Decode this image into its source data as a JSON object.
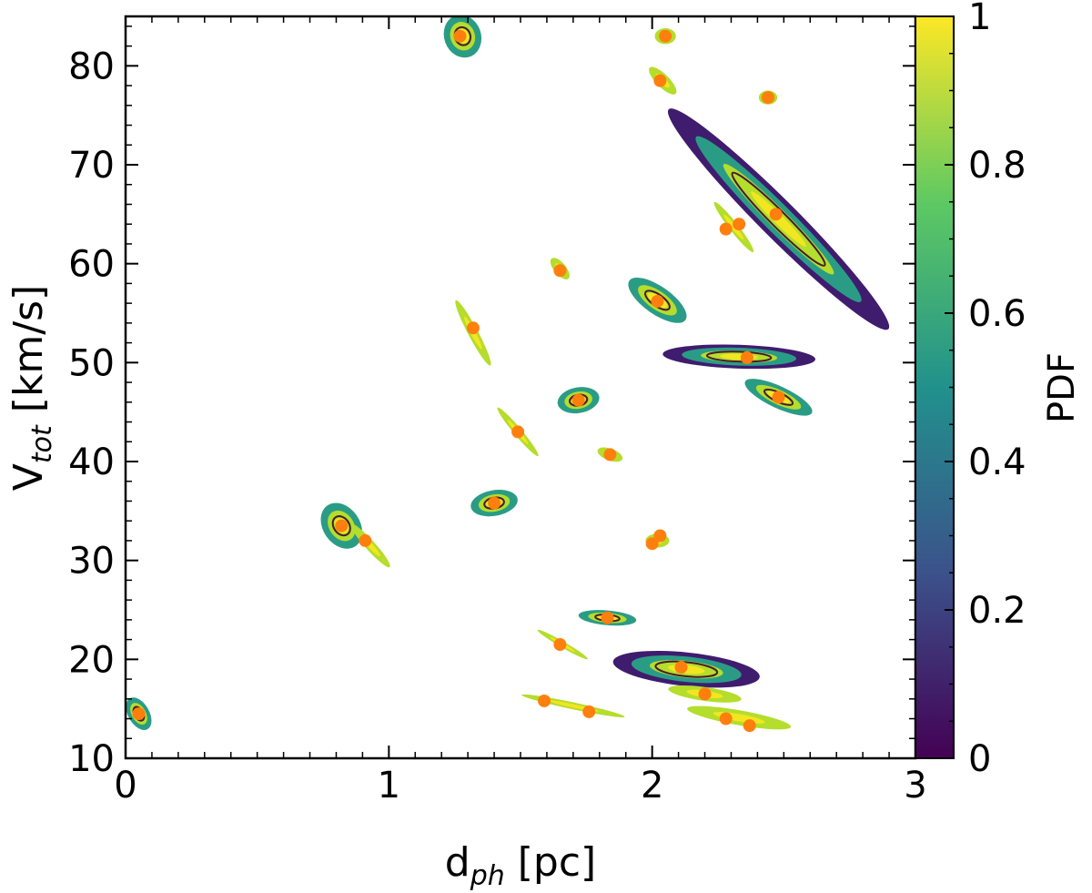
{
  "chart_data": {
    "type": "scatter",
    "xlim": [
      0,
      3
    ],
    "ylim": [
      10,
      85
    ],
    "x_ticks": [
      0,
      1,
      2,
      3
    ],
    "y_ticks": [
      10,
      20,
      30,
      40,
      50,
      60,
      70,
      80
    ],
    "xlabel": {
      "main": "d",
      "sub": "ph",
      "unit": " [pc]"
    },
    "ylabel": {
      "main": "V",
      "sub": "tot",
      "unit": " [km/s]"
    },
    "colorbar": {
      "label": "PDF",
      "range": [
        0,
        1
      ],
      "ticks": [
        "0",
        "0.2",
        "0.4",
        "0.6",
        "0.8",
        "1"
      ],
      "colormap": "viridis",
      "stops": [
        "#440154",
        "#3b528b",
        "#21918c",
        "#5ec962",
        "#fde725"
      ]
    },
    "marker_color": "#ff7f0e",
    "contour_color": "#4a1a2e",
    "points": [
      {
        "x": 0.05,
        "y": 14.5
      },
      {
        "x": 0.82,
        "y": 33.5
      },
      {
        "x": 0.91,
        "y": 32.0
      },
      {
        "x": 1.27,
        "y": 83.0
      },
      {
        "x": 1.32,
        "y": 53.5
      },
      {
        "x": 1.4,
        "y": 35.8
      },
      {
        "x": 1.49,
        "y": 43.0
      },
      {
        "x": 1.59,
        "y": 15.8
      },
      {
        "x": 1.65,
        "y": 21.5
      },
      {
        "x": 1.65,
        "y": 59.3
      },
      {
        "x": 1.72,
        "y": 46.2
      },
      {
        "x": 1.76,
        "y": 14.7
      },
      {
        "x": 1.83,
        "y": 24.2
      },
      {
        "x": 1.84,
        "y": 40.7
      },
      {
        "x": 2.0,
        "y": 31.7
      },
      {
        "x": 2.03,
        "y": 32.5
      },
      {
        "x": 2.02,
        "y": 56.2
      },
      {
        "x": 2.03,
        "y": 78.5
      },
      {
        "x": 2.05,
        "y": 83.0
      },
      {
        "x": 2.11,
        "y": 19.2
      },
      {
        "x": 2.2,
        "y": 16.5
      },
      {
        "x": 2.28,
        "y": 14.0
      },
      {
        "x": 2.37,
        "y": 13.3
      },
      {
        "x": 2.28,
        "y": 63.5
      },
      {
        "x": 2.33,
        "y": 64.0
      },
      {
        "x": 2.36,
        "y": 50.5
      },
      {
        "x": 2.44,
        "y": 76.8
      },
      {
        "x": 2.47,
        "y": 65.0
      },
      {
        "x": 2.48,
        "y": 46.5
      }
    ],
    "distributions": [
      {
        "cx": 0.05,
        "cy": 14.5,
        "width": 0.08,
        "height": 3.6,
        "angle": -30,
        "levels": 3
      },
      {
        "cx": 0.82,
        "cy": 33.5,
        "width": 0.14,
        "height": 5.0,
        "angle": -35,
        "levels": 3
      },
      {
        "cx": 0.93,
        "cy": 31.5,
        "width": 0.22,
        "height": 1.0,
        "angle": 48,
        "levels": 2
      },
      {
        "cx": 1.28,
        "cy": 83.0,
        "width": 0.14,
        "height": 4.4,
        "angle": -20,
        "levels": 3
      },
      {
        "cx": 1.32,
        "cy": 53.0,
        "width": 0.28,
        "height": 1.0,
        "angle": 62,
        "levels": 2
      },
      {
        "cx": 1.4,
        "cy": 35.8,
        "width": 0.18,
        "height": 2.6,
        "angle": -10,
        "levels": 3
      },
      {
        "cx": 1.49,
        "cy": 43.0,
        "width": 0.24,
        "height": 0.8,
        "angle": 50,
        "levels": 2
      },
      {
        "cx": 1.7,
        "cy": 15.3,
        "width": 0.4,
        "height": 0.7,
        "angle": 12,
        "levels": 2
      },
      {
        "cx": 1.66,
        "cy": 21.5,
        "width": 0.22,
        "height": 0.6,
        "angle": 30,
        "levels": 2
      },
      {
        "cx": 1.65,
        "cy": 59.5,
        "width": 0.1,
        "height": 1.2,
        "angle": 50,
        "levels": 2
      },
      {
        "cx": 1.72,
        "cy": 46.2,
        "width": 0.16,
        "height": 2.6,
        "angle": -10,
        "levels": 3
      },
      {
        "cx": 1.83,
        "cy": 24.2,
        "width": 0.22,
        "height": 1.5,
        "angle": 5,
        "levels": 3
      },
      {
        "cx": 1.84,
        "cy": 40.7,
        "width": 0.1,
        "height": 1.2,
        "angle": 20,
        "levels": 2
      },
      {
        "cx": 2.02,
        "cy": 32.0,
        "width": 0.09,
        "height": 1.4,
        "angle": 0,
        "levels": 2
      },
      {
        "cx": 2.02,
        "cy": 56.3,
        "width": 0.26,
        "height": 2.8,
        "angle": 35,
        "levels": 3
      },
      {
        "cx": 2.04,
        "cy": 78.5,
        "width": 0.14,
        "height": 1.3,
        "angle": 45,
        "levels": 2
      },
      {
        "cx": 2.05,
        "cy": 83.0,
        "width": 0.08,
        "height": 1.6,
        "angle": 0,
        "levels": 2
      },
      {
        "cx": 2.13,
        "cy": 19.0,
        "width": 0.56,
        "height": 3.4,
        "angle": 6,
        "levels": 4
      },
      {
        "cx": 2.2,
        "cy": 16.5,
        "width": 0.28,
        "height": 1.4,
        "angle": 8,
        "levels": 2
      },
      {
        "cx": 2.33,
        "cy": 14.1,
        "width": 0.4,
        "height": 1.5,
        "angle": 10,
        "levels": 2
      },
      {
        "cx": 2.31,
        "cy": 63.7,
        "width": 0.24,
        "height": 0.9,
        "angle": 52,
        "levels": 2
      },
      {
        "cx": 2.33,
        "cy": 50.6,
        "width": 0.58,
        "height": 2.4,
        "angle": 2,
        "levels": 4
      },
      {
        "cx": 2.44,
        "cy": 76.8,
        "width": 0.07,
        "height": 1.4,
        "angle": 0,
        "levels": 2
      },
      {
        "cx": 2.48,
        "cy": 64.5,
        "width": 1.18,
        "height": 3.8,
        "angle": 45,
        "levels": 4
      },
      {
        "cx": 2.48,
        "cy": 46.5,
        "width": 0.28,
        "height": 2.2,
        "angle": 25,
        "levels": 3
      }
    ]
  }
}
